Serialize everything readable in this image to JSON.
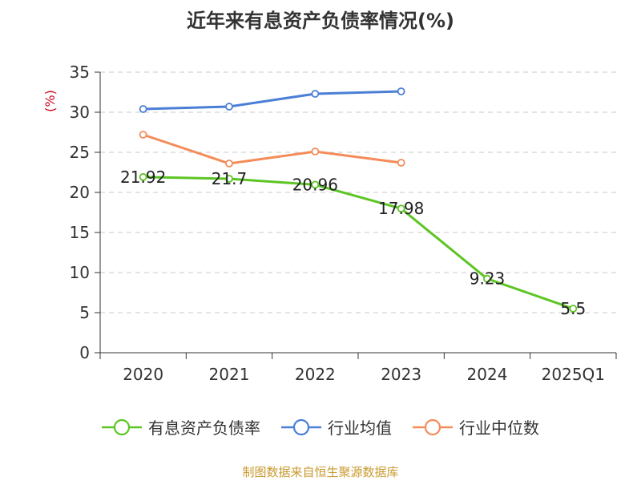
{
  "chart_data": {
    "type": "line",
    "title": "近年来有息资产负债率情况(%)",
    "ylabel": "(%)",
    "xlabel": "",
    "categories": [
      "2020",
      "2021",
      "2022",
      "2023",
      "2024",
      "2025Q1"
    ],
    "ylim": [
      0,
      35
    ],
    "yticks": [
      "0",
      "5",
      "10",
      "15",
      "20",
      "25",
      "30",
      "35"
    ],
    "grid": "horizontal-dashed",
    "legend_position": "bottom",
    "series": [
      {
        "name": "有息资产负债率",
        "color": "#5cc524",
        "values": [
          21.92,
          21.7,
          20.96,
          17.98,
          9.23,
          5.5
        ],
        "labels": [
          "21.92",
          "21.7",
          "20.96",
          "17.98",
          "9.23",
          "5.5"
        ]
      },
      {
        "name": "行业均值",
        "color": "#4a7fd6",
        "values": [
          30.4,
          30.7,
          32.3,
          32.6,
          null,
          null
        ]
      },
      {
        "name": "行业中位数",
        "color": "#f48c5a",
        "values": [
          27.2,
          23.6,
          25.1,
          23.7,
          null,
          null
        ]
      }
    ]
  },
  "source": "制图数据来自恒生聚源数据库"
}
